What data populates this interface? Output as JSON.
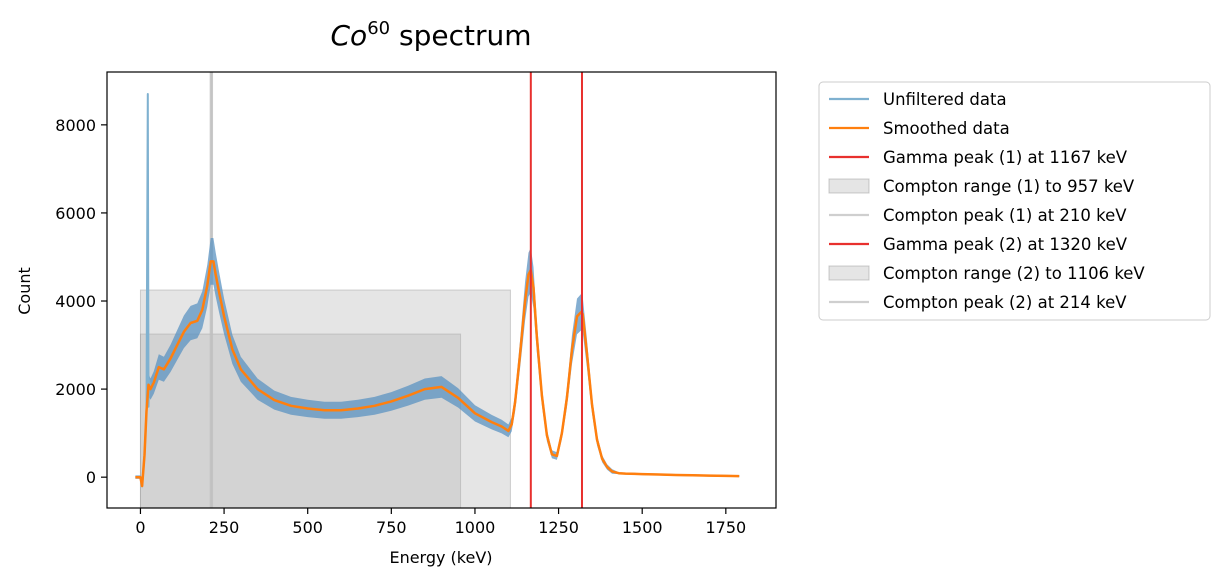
{
  "chart_data": {
    "type": "line",
    "title_base": "Co",
    "title_superscript": "60",
    "title_suffix": " spectrum",
    "xlabel": "Energy (keV)",
    "ylabel": "Count",
    "xlim": [
      -100,
      1900
    ],
    "ylim": [
      -700,
      9200
    ],
    "x_ticks": [
      0,
      250,
      500,
      750,
      1000,
      1250,
      1500,
      1750
    ],
    "y_ticks": [
      0,
      2000,
      4000,
      6000,
      8000
    ],
    "grid": false,
    "legend_position": "outside-right",
    "colors": {
      "unfiltered": "#7fb1d0",
      "unfiltered_band": "#5b93c2",
      "smoothed": "#ff7f0e",
      "gamma": "#e8302e",
      "compton_range": "#b0b0b0",
      "compton_peak": "#bfbfbf"
    },
    "legend": [
      {
        "label": "Unfiltered data",
        "kind": "line",
        "color": "#7fb1d0"
      },
      {
        "label": "Smoothed data",
        "kind": "line",
        "color": "#ff7f0e"
      },
      {
        "label": "Gamma peak (1) at 1167 keV",
        "kind": "line",
        "color": "#e8302e"
      },
      {
        "label": "Compton range (1) to 957 keV",
        "kind": "patch",
        "color": "#b0b0b0"
      },
      {
        "label": "Compton peak (1) at 210 keV",
        "kind": "line",
        "color": "#cfcfcf"
      },
      {
        "label": "Gamma peak (2) at 1320 keV",
        "kind": "line",
        "color": "#e8302e"
      },
      {
        "label": "Compton range (2) to 1106 keV",
        "kind": "patch",
        "color": "#b0b0b0"
      },
      {
        "label": "Compton peak (2) at 214 keV",
        "kind": "line",
        "color": "#cfcfcf"
      }
    ],
    "gamma_peaks": [
      1167,
      1320
    ],
    "compton_peaks": [
      210,
      214
    ],
    "compton_ranges": [
      {
        "x0": 0,
        "x1": 957,
        "height": 3250
      },
      {
        "x0": 0,
        "x1": 1106,
        "height": 4250
      }
    ],
    "series": [
      {
        "name": "Smoothed data",
        "x": [
          -15,
          0,
          5,
          12,
          18,
          24,
          30,
          40,
          55,
          70,
          90,
          110,
          130,
          150,
          170,
          185,
          200,
          210,
          218,
          225,
          235,
          250,
          275,
          300,
          350,
          400,
          450,
          500,
          550,
          600,
          650,
          700,
          750,
          800,
          850,
          900,
          950,
          1000,
          1050,
          1080,
          1100,
          1110,
          1120,
          1135,
          1150,
          1160,
          1167,
          1175,
          1185,
          1200,
          1215,
          1230,
          1245,
          1260,
          1275,
          1290,
          1305,
          1318,
          1322,
          1335,
          1350,
          1365,
          1380,
          1395,
          1410,
          1430,
          1450,
          1500,
          1550,
          1600,
          1650,
          1700,
          1750,
          1790
        ],
        "y": [
          0,
          0,
          -200,
          500,
          1500,
          2100,
          2000,
          2150,
          2500,
          2450,
          2700,
          3000,
          3300,
          3500,
          3550,
          3800,
          4350,
          4900,
          4900,
          4600,
          4200,
          3650,
          2900,
          2450,
          2000,
          1750,
          1620,
          1560,
          1520,
          1520,
          1560,
          1620,
          1720,
          1850,
          2000,
          2050,
          1800,
          1450,
          1250,
          1150,
          1050,
          1200,
          1700,
          2800,
          4000,
          4600,
          4700,
          4300,
          3200,
          1850,
          950,
          520,
          480,
          1000,
          1800,
          2900,
          3650,
          3750,
          3700,
          2800,
          1650,
          850,
          420,
          230,
          130,
          90,
          80,
          70,
          60,
          50,
          45,
          35,
          30,
          25
        ]
      },
      {
        "name": "Unfiltered data",
        "x": [
          -15,
          0,
          5,
          12,
          18,
          22,
          24,
          26,
          30,
          40,
          55,
          70,
          90,
          110,
          130,
          150,
          170,
          185,
          200,
          210,
          218,
          225,
          235,
          250,
          275,
          300,
          350,
          400,
          450,
          500,
          550,
          600,
          650,
          700,
          750,
          800,
          850,
          900,
          950,
          1000,
          1050,
          1080,
          1100,
          1110,
          1120,
          1135,
          1150,
          1160,
          1167,
          1175,
          1185,
          1200,
          1215,
          1230,
          1245,
          1260,
          1275,
          1290,
          1305,
          1318,
          1322,
          1335,
          1350,
          1365,
          1380,
          1395,
          1410,
          1430,
          1450,
          1500,
          1550,
          1600,
          1650,
          1700,
          1750,
          1790
        ],
        "y": [
          0,
          0,
          -200,
          500,
          1500,
          8700,
          1600,
          2200,
          2000,
          2150,
          2500,
          2450,
          2700,
          3000,
          3300,
          3500,
          3550,
          3800,
          4350,
          4900,
          4900,
          4600,
          4200,
          3650,
          2900,
          2450,
          2000,
          1750,
          1620,
          1560,
          1520,
          1520,
          1560,
          1620,
          1720,
          1850,
          2000,
          2050,
          1800,
          1450,
          1250,
          1150,
          1050,
          1200,
          1700,
          2800,
          4000,
          4600,
          4700,
          4300,
          3200,
          1850,
          950,
          520,
          480,
          1000,
          1800,
          2900,
          3650,
          3750,
          3700,
          2800,
          1650,
          850,
          420,
          230,
          130,
          90,
          80,
          70,
          60,
          50,
          45,
          35,
          30,
          25
        ]
      }
    ]
  }
}
